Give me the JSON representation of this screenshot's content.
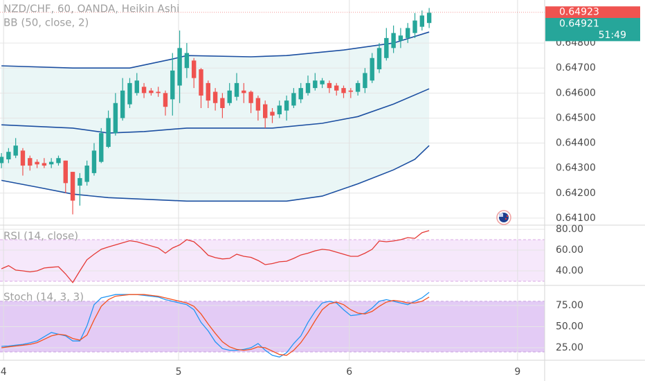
{
  "chart_data": [
    {
      "type": "candlestick",
      "title": "NZD/CHF, 60, OANDA, Heikin Ashi",
      "subtitle": "BB (50, close, 2)",
      "x": [
        0,
        1,
        2,
        3,
        4,
        5,
        6,
        7,
        8,
        9,
        10,
        11,
        12,
        13,
        14,
        15,
        16,
        17,
        18,
        19,
        20,
        21,
        22,
        23,
        24,
        25,
        26,
        27,
        28,
        29,
        30,
        31,
        32,
        33,
        34,
        35,
        36,
        37,
        38,
        39,
        40,
        41,
        42,
        43,
        44,
        45,
        46,
        47,
        48,
        49,
        50,
        51,
        52,
        53,
        54,
        55,
        56,
        57,
        58,
        59,
        60
      ],
      "open": [
        0.6432,
        0.64335,
        0.6435,
        0.6437,
        0.6434,
        0.64325,
        0.6432,
        0.64315,
        0.6432,
        0.6433,
        0.64285,
        0.6423,
        0.64245,
        0.6428,
        0.64325,
        0.64385,
        0.6444,
        0.645,
        0.64555,
        0.646,
        0.64625,
        0.6461,
        0.64605,
        0.646,
        0.64575,
        0.6463,
        0.647,
        0.6473,
        0.64695,
        0.6464,
        0.64605,
        0.6458,
        0.6456,
        0.64585,
        0.6461,
        0.64605,
        0.6458,
        0.64555,
        0.64525,
        0.64515,
        0.6453,
        0.6455,
        0.64575,
        0.646,
        0.6462,
        0.64635,
        0.6464,
        0.6463,
        0.6462,
        0.6461,
        0.64605,
        0.6462,
        0.6465,
        0.64695,
        0.6474,
        0.6478,
        0.6481,
        0.6482,
        0.6484,
        0.64865,
        0.6488
      ],
      "high": [
        0.6436,
        0.6438,
        0.6442,
        0.6438,
        0.6435,
        0.64335,
        0.6434,
        0.6434,
        0.6435,
        0.6433,
        0.64285,
        0.6428,
        0.6433,
        0.644,
        0.6446,
        0.6453,
        0.646,
        0.6466,
        0.6466,
        0.6468,
        0.6464,
        0.6462,
        0.64625,
        0.6461,
        0.6476,
        0.6485,
        0.648,
        0.6474,
        0.647,
        0.6465,
        0.6462,
        0.646,
        0.6464,
        0.6468,
        0.6464,
        0.6461,
        0.6459,
        0.6457,
        0.6454,
        0.6457,
        0.6459,
        0.6462,
        0.6464,
        0.6467,
        0.6468,
        0.6466,
        0.6465,
        0.6464,
        0.6463,
        0.6462,
        0.6465,
        0.647,
        0.6476,
        0.648,
        0.6486,
        0.6487,
        0.6486,
        0.6488,
        0.6492,
        0.6493,
        0.6494
      ],
      "low": [
        0.643,
        0.6432,
        0.6434,
        0.6427,
        0.6429,
        0.643,
        0.643,
        0.643,
        0.6431,
        0.642,
        0.64115,
        0.6415,
        0.6423,
        0.6427,
        0.6432,
        0.6438,
        0.6443,
        0.6449,
        0.6454,
        0.6459,
        0.6458,
        0.6459,
        0.64585,
        0.6451,
        0.6451,
        0.6456,
        0.6466,
        0.6462,
        0.6454,
        0.6454,
        0.6453,
        0.645,
        0.6455,
        0.6457,
        0.6456,
        0.6452,
        0.6449,
        0.6446,
        0.6448,
        0.645,
        0.6449,
        0.6454,
        0.6456,
        0.6459,
        0.6461,
        0.6462,
        0.646,
        0.6459,
        0.6458,
        0.6458,
        0.6459,
        0.646,
        0.6464,
        0.6468,
        0.6473,
        0.6476,
        0.6478,
        0.648,
        0.6482,
        0.6485,
        0.6486
      ],
      "close": [
        0.64345,
        0.64365,
        0.6439,
        0.6431,
        0.6431,
        0.64315,
        0.6431,
        0.64325,
        0.6434,
        0.6424,
        0.6417,
        0.6426,
        0.6431,
        0.6437,
        0.6444,
        0.645,
        0.6456,
        0.6461,
        0.6464,
        0.6465,
        0.646,
        0.646,
        0.646,
        0.64545,
        0.6469,
        0.6478,
        0.6476,
        0.6466,
        0.6459,
        0.6457,
        0.6456,
        0.6454,
        0.6461,
        0.6464,
        0.646,
        0.6456,
        0.6453,
        0.645,
        0.6451,
        0.6455,
        0.6457,
        0.646,
        0.6462,
        0.6464,
        0.6465,
        0.6465,
        0.6462,
        0.6461,
        0.646,
        0.64605,
        0.6464,
        0.6468,
        0.6474,
        0.6478,
        0.6482,
        0.6484,
        0.6483,
        0.6486,
        0.6489,
        0.6491,
        0.64921
      ],
      "up_color": "#26a69a",
      "down_color": "#ef5350",
      "bands": [
        {
          "color": "#1c4fa1",
          "x": [
            0,
            10,
            18,
            24,
            26,
            35,
            40,
            48,
            55,
            60
          ],
          "values": [
            0.64709,
            0.647,
            0.647,
            0.64736,
            0.6475,
            0.64745,
            0.6475,
            0.64772,
            0.648,
            0.64844
          ]
        },
        {
          "color": "#1c4fa1",
          "x": [
            0,
            10,
            15,
            20,
            26,
            38,
            45,
            50,
            55,
            60
          ],
          "values": [
            0.64473,
            0.6446,
            0.6444,
            0.64446,
            0.6446,
            0.6446,
            0.64479,
            0.64506,
            0.64556,
            0.64617
          ]
        },
        {
          "color": "#1c4fa1",
          "x": [
            0,
            5,
            10,
            15,
            26,
            40,
            45,
            50,
            55,
            58,
            60
          ],
          "values": [
            0.64251,
            0.64224,
            0.64196,
            0.64182,
            0.64168,
            0.64168,
            0.64188,
            0.64237,
            0.64293,
            0.64335,
            0.6439
          ]
        }
      ],
      "band_fill": "#eaf6f6",
      "xlim": [
        -0.2,
        76.2
      ],
      "ylim": [
        0.64072,
        0.64972
      ],
      "yticks": [
        {
          "value": 0.641,
          "label": "0.64100"
        },
        {
          "value": 0.642,
          "label": "0.64200"
        },
        {
          "value": 0.643,
          "label": "0.64300"
        },
        {
          "value": 0.644,
          "label": "0.64400"
        },
        {
          "value": 0.645,
          "label": "0.64500"
        },
        {
          "value": 0.646,
          "label": "0.64600"
        },
        {
          "value": 0.647,
          "label": "0.64700"
        },
        {
          "value": 0.648,
          "label": "0.64800"
        }
      ],
      "grid": true,
      "price_labels": [
        {
          "value": 0.64923,
          "color": "#ef5350"
        },
        {
          "value": 0.64921,
          "color": "#26a69a"
        }
      ],
      "countdown": "51:49"
    },
    {
      "type": "line",
      "title": "RSI (14, close)",
      "x": [
        0,
        1,
        2,
        3,
        4,
        5,
        6,
        7,
        8,
        9,
        10,
        11,
        12,
        13,
        14,
        15,
        16,
        17,
        18,
        19,
        20,
        21,
        22,
        23,
        24,
        25,
        26,
        27,
        28,
        29,
        30,
        31,
        32,
        33,
        34,
        35,
        36,
        37,
        38,
        39,
        40,
        41,
        42,
        43,
        44,
        45,
        46,
        47,
        48,
        49,
        50,
        51,
        52,
        53,
        54,
        55,
        56,
        57,
        58,
        59,
        60
      ],
      "series": [
        {
          "color": "#e53935",
          "values": [
            42,
            45,
            40.7,
            40,
            39,
            40,
            42.7,
            43.5,
            44,
            37,
            28.7,
            40,
            50.7,
            56,
            60.7,
            63,
            65,
            67,
            69,
            68,
            66,
            64,
            62,
            57,
            62,
            65,
            70,
            68,
            62,
            55,
            52.7,
            51.5,
            52,
            56,
            54,
            53,
            50,
            46,
            47,
            48.7,
            49.3,
            52,
            55.3,
            57,
            59.3,
            60.7,
            60,
            58,
            56,
            54,
            54,
            57,
            60.7,
            68.7,
            68,
            68.7,
            70,
            72,
            71.3,
            76.7,
            78.7
          ]
        }
      ],
      "band": [
        30,
        70
      ],
      "band_fill": "#f6e8fb",
      "band_line": "#d9a8e6",
      "xlim": [
        -0.2,
        76.2
      ],
      "ylim": [
        26,
        84
      ],
      "yticks": [
        {
          "value": 40,
          "label": "40.00"
        },
        {
          "value": 60,
          "label": "60.00"
        },
        {
          "value": 80,
          "label": "80.00"
        }
      ],
      "grid": true
    },
    {
      "type": "line",
      "title": "Stoch (14, 3, 3)",
      "x": [
        0,
        1,
        2,
        3,
        4,
        5,
        6,
        7,
        8,
        9,
        10,
        11,
        12,
        13,
        14,
        15,
        16,
        17,
        18,
        19,
        20,
        21,
        22,
        23,
        24,
        25,
        26,
        27,
        28,
        29,
        30,
        31,
        32,
        33,
        34,
        35,
        36,
        37,
        38,
        39,
        40,
        41,
        42,
        43,
        44,
        45,
        46,
        47,
        48,
        49,
        50,
        51,
        52,
        53,
        54,
        55,
        56,
        57,
        58,
        59,
        60
      ],
      "series": [
        {
          "color": "#2196f3",
          "values": [
            26.6,
            27,
            28,
            29,
            30.7,
            33,
            38,
            43,
            41,
            39,
            33,
            33,
            51,
            76,
            84,
            86,
            88,
            88,
            88,
            88,
            87,
            86,
            85,
            82,
            80,
            78,
            76,
            70,
            55,
            45,
            32,
            24,
            22,
            22,
            23,
            25,
            30,
            22,
            16,
            14,
            19,
            30,
            39,
            55,
            68,
            78,
            80,
            78,
            70,
            63,
            64,
            66,
            72,
            80,
            82,
            80,
            78,
            76,
            80,
            84,
            90.6
          ]
        },
        {
          "color": "#f4511e",
          "values": [
            25,
            26,
            27,
            28,
            29,
            31,
            35,
            39,
            41,
            40,
            36,
            34,
            40,
            58,
            74,
            82,
            86,
            87,
            88,
            88,
            88,
            87,
            86,
            84,
            82,
            80,
            78,
            74,
            65,
            53,
            42,
            32,
            26,
            23,
            22,
            23,
            26,
            25,
            21,
            17,
            16,
            22,
            31,
            43,
            57,
            70,
            77,
            79,
            76,
            70,
            66,
            65,
            68,
            74,
            79,
            81,
            80,
            78,
            78,
            80,
            85
          ]
        }
      ],
      "band": [
        20,
        80
      ],
      "band_fill": "#e3cbf5",
      "band_line": "#c8a2e0",
      "xlim": [
        -0.2,
        76.2
      ],
      "ylim": [
        10.2,
        98.8
      ],
      "yticks": [
        {
          "value": 25,
          "label": "25.00"
        },
        {
          "value": 50,
          "label": "50.00"
        },
        {
          "value": 75,
          "label": "75.00"
        }
      ],
      "xticks": [
        {
          "value": 0.3,
          "label": "4"
        },
        {
          "value": 24.85,
          "label": "5"
        },
        {
          "value": 48.8,
          "label": "6"
        },
        {
          "value": 72.4,
          "label": "9"
        }
      ],
      "grid": true
    }
  ]
}
